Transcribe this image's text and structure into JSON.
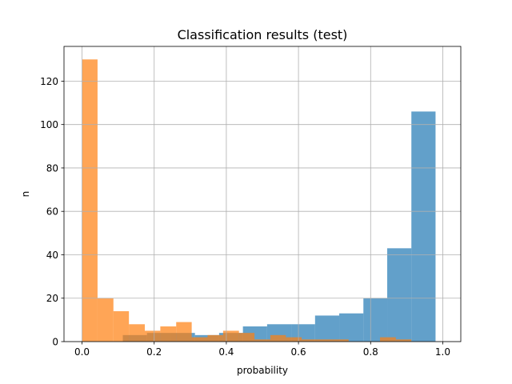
{
  "chart_data": {
    "type": "bar",
    "subtype": "histogram",
    "title": "Classification results (test)",
    "xlabel": "probability",
    "ylabel": "n",
    "xlim": [
      -0.05,
      1.05
    ],
    "ylim": [
      0,
      136
    ],
    "xticks": [
      0.0,
      0.2,
      0.4,
      0.6,
      0.8,
      1.0
    ],
    "xtick_labels": [
      "0.0",
      "0.2",
      "0.4",
      "0.6",
      "0.8",
      "1.0"
    ],
    "yticks": [
      0,
      20,
      40,
      60,
      80,
      100,
      120
    ],
    "ytick_labels": [
      "0",
      "20",
      "40",
      "60",
      "80",
      "100",
      "120"
    ],
    "grid": true,
    "legend": false,
    "series": [
      {
        "color": "#1f77b4",
        "alpha": 0.7,
        "bins": [
          {
            "x0": 0.113,
            "x1": 0.18,
            "count": 3
          },
          {
            "x0": 0.18,
            "x1": 0.246,
            "count": 4
          },
          {
            "x0": 0.246,
            "x1": 0.313,
            "count": 4
          },
          {
            "x0": 0.313,
            "x1": 0.38,
            "count": 3
          },
          {
            "x0": 0.38,
            "x1": 0.446,
            "count": 4
          },
          {
            "x0": 0.446,
            "x1": 0.513,
            "count": 7
          },
          {
            "x0": 0.513,
            "x1": 0.58,
            "count": 8
          },
          {
            "x0": 0.58,
            "x1": 0.646,
            "count": 8
          },
          {
            "x0": 0.646,
            "x1": 0.713,
            "count": 12
          },
          {
            "x0": 0.713,
            "x1": 0.78,
            "count": 13
          },
          {
            "x0": 0.78,
            "x1": 0.846,
            "count": 20
          },
          {
            "x0": 0.846,
            "x1": 0.913,
            "count": 43
          },
          {
            "x0": 0.913,
            "x1": 0.98,
            "count": 106
          }
        ]
      },
      {
        "color": "#ff7f0e",
        "alpha": 0.7,
        "bins": [
          {
            "x0": 0.0,
            "x1": 0.043,
            "count": 130
          },
          {
            "x0": 0.043,
            "x1": 0.087,
            "count": 20
          },
          {
            "x0": 0.087,
            "x1": 0.13,
            "count": 14
          },
          {
            "x0": 0.13,
            "x1": 0.174,
            "count": 8
          },
          {
            "x0": 0.174,
            "x1": 0.217,
            "count": 5
          },
          {
            "x0": 0.217,
            "x1": 0.261,
            "count": 7
          },
          {
            "x0": 0.261,
            "x1": 0.304,
            "count": 9
          },
          {
            "x0": 0.304,
            "x1": 0.348,
            "count": 2
          },
          {
            "x0": 0.348,
            "x1": 0.391,
            "count": 3
          },
          {
            "x0": 0.391,
            "x1": 0.435,
            "count": 5
          },
          {
            "x0": 0.435,
            "x1": 0.478,
            "count": 4
          },
          {
            "x0": 0.478,
            "x1": 0.522,
            "count": 1
          },
          {
            "x0": 0.522,
            "x1": 0.565,
            "count": 3
          },
          {
            "x0": 0.565,
            "x1": 0.609,
            "count": 2
          },
          {
            "x0": 0.609,
            "x1": 0.652,
            "count": 1
          },
          {
            "x0": 0.652,
            "x1": 0.696,
            "count": 1
          },
          {
            "x0": 0.696,
            "x1": 0.739,
            "count": 1
          },
          {
            "x0": 0.739,
            "x1": 0.783,
            "count": 0
          },
          {
            "x0": 0.783,
            "x1": 0.826,
            "count": 0
          },
          {
            "x0": 0.826,
            "x1": 0.87,
            "count": 2
          },
          {
            "x0": 0.87,
            "x1": 0.913,
            "count": 1
          },
          {
            "x0": 0.913,
            "x1": 0.957,
            "count": 0
          },
          {
            "x0": 0.957,
            "x1": 1.0,
            "count": 0
          }
        ]
      }
    ]
  }
}
